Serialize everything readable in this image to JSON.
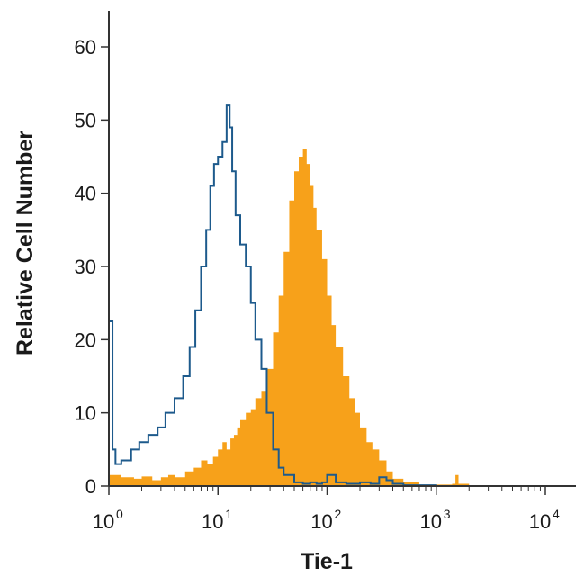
{
  "chart_data": {
    "type": "area",
    "title": "",
    "xlabel": "Tie-1",
    "ylabel": "Relative Cell Number",
    "x_scale": "log",
    "xlim": [
      1,
      10000
    ],
    "ylim": [
      0,
      65
    ],
    "x_ticks": [
      {
        "value": 1,
        "base": "10",
        "exp": "0"
      },
      {
        "value": 10,
        "base": "10",
        "exp": "1"
      },
      {
        "value": 100,
        "base": "10",
        "exp": "2"
      },
      {
        "value": 1000,
        "base": "10",
        "exp": "3"
      },
      {
        "value": 10000,
        "base": "10",
        "exp": "4"
      }
    ],
    "y_ticks": [
      0,
      10,
      20,
      30,
      40,
      50,
      60
    ],
    "grid": false,
    "colors": {
      "filled": "#f7a11a",
      "outline": "#1d5a8c",
      "axis": "#333333"
    },
    "series": [
      {
        "style": "filled",
        "x": [
          1,
          1.3,
          1.7,
          2,
          2.5,
          3,
          3.5,
          4,
          5,
          6,
          7,
          8,
          9,
          10,
          11,
          12,
          13,
          14,
          15,
          16,
          18,
          20,
          22,
          25,
          28,
          32,
          36,
          40,
          45,
          50,
          55,
          60,
          65,
          70,
          75,
          80,
          90,
          100,
          110,
          120,
          140,
          160,
          180,
          200,
          230,
          260,
          300,
          350,
          400,
          500,
          700,
          1000,
          1400,
          1500,
          1600,
          2000,
          3000,
          5000,
          10000
        ],
        "y": [
          1.5,
          1.2,
          1,
          1.3,
          0.8,
          1.2,
          1.5,
          1.2,
          2,
          2.5,
          3.5,
          3,
          4,
          5,
          6,
          5,
          6.5,
          7,
          8,
          9,
          10,
          10.5,
          12,
          13,
          16,
          21,
          26,
          32,
          39,
          43,
          45,
          46,
          44,
          41,
          38,
          35,
          31,
          26,
          22,
          19,
          15,
          12,
          10,
          8,
          6,
          5,
          3.5,
          2,
          1,
          0.5,
          0.2,
          0.2,
          0.3,
          1.5,
          0.3,
          0.1,
          0,
          0,
          0
        ]
      },
      {
        "style": "outline",
        "x": [
          1,
          1.08,
          1.15,
          1.3,
          1.6,
          1.9,
          2.3,
          2.8,
          3.3,
          4,
          4.8,
          5.5,
          6.2,
          7,
          7.8,
          8.5,
          9.2,
          10,
          11,
          12,
          12.8,
          13.5,
          14.5,
          16,
          18,
          20,
          22,
          25,
          28,
          32,
          36,
          40,
          50,
          60,
          70,
          80,
          90,
          100,
          120,
          150,
          200,
          250,
          300,
          350,
          400,
          500,
          1000,
          10000
        ],
        "y": [
          22.5,
          5,
          3,
          3.5,
          5,
          6,
          7,
          8,
          10,
          12,
          15,
          19,
          24,
          30,
          35,
          41,
          44,
          45,
          47,
          52,
          49,
          43,
          37,
          33,
          30,
          25,
          20,
          16,
          10,
          5,
          2.5,
          1.5,
          0.5,
          0.3,
          0.5,
          0.3,
          0.5,
          1.5,
          0.5,
          0.3,
          0.5,
          0.3,
          1.2,
          0.8,
          0.3,
          0.1,
          0,
          0
        ]
      }
    ]
  }
}
